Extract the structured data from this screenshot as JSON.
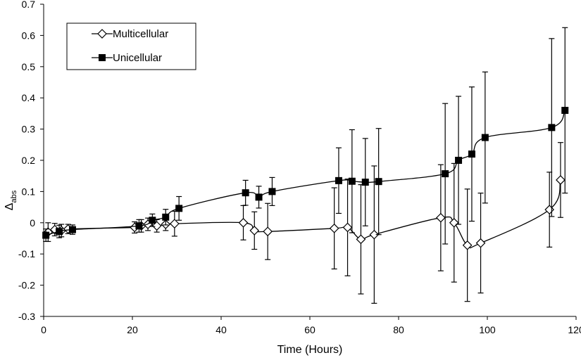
{
  "chart_data": {
    "type": "scatter",
    "title": "",
    "xlabel": "Time (Hours)",
    "ylabel": {
      "main": "Δ",
      "sub": "abs"
    },
    "xlim": [
      0,
      120
    ],
    "ylim": [
      -0.3,
      0.7
    ],
    "xticks": [
      "0",
      "20",
      "40",
      "60",
      "80",
      "100",
      "120"
    ],
    "yticks": [
      "-0.3",
      "-0.2",
      "-0.1",
      "0",
      "0.1",
      "0.2",
      "0.3",
      "0.4",
      "0.5",
      "0.6",
      "0.7"
    ],
    "grid": false,
    "legend_position": "top-left",
    "series": [
      {
        "name": "Multicellular",
        "marker": "open-diamond",
        "color": "#000000",
        "x": [
          1,
          2.5,
          4,
          5.5,
          20.5,
          22,
          23.5,
          25.5,
          27.5,
          29.5,
          45,
          47.5,
          50.5,
          65.5,
          68.5,
          71.5,
          74.5,
          89.5,
          92.5,
          95.5,
          98.5,
          114,
          116.5
        ],
        "y": [
          -0.03,
          -0.022,
          -0.025,
          -0.02,
          -0.015,
          -0.01,
          -0.005,
          -0.01,
          -0.005,
          -0.003,
          0,
          -0.025,
          -0.028,
          -0.018,
          -0.015,
          -0.053,
          -0.038,
          0.016,
          0.0,
          -0.072,
          -0.065,
          0.042,
          0.137
        ],
        "err": [
          0.03,
          0.02,
          0.02,
          0.015,
          0.018,
          0.02,
          0.02,
          0.02,
          0.02,
          0.04,
          0.055,
          0.06,
          0.09,
          0.13,
          0.155,
          0.175,
          0.22,
          0.17,
          0.19,
          0.18,
          0.16,
          0.12,
          0.12
        ]
      },
      {
        "name": "Unicellular",
        "marker": "filled-square",
        "color": "#000000",
        "x": [
          0.5,
          3.5,
          6.5,
          21.5,
          24.5,
          27.5,
          30.5,
          45.5,
          48.5,
          51.5,
          66.5,
          69.5,
          72.5,
          75.5,
          90.5,
          93.5,
          96.5,
          99.5,
          114.5,
          117.5
        ],
        "y": [
          -0.04,
          -0.028,
          -0.022,
          -0.01,
          0.008,
          0.018,
          0.046,
          0.096,
          0.082,
          0.1,
          0.135,
          0.133,
          0.13,
          0.132,
          0.157,
          0.2,
          0.22,
          0.273,
          0.305,
          0.36
        ],
        "err": [
          0.02,
          0.02,
          0.015,
          0.02,
          0.02,
          0.025,
          0.038,
          0.04,
          0.035,
          0.045,
          0.105,
          0.165,
          0.14,
          0.17,
          0.225,
          0.205,
          0.215,
          0.21,
          0.285,
          0.265
        ]
      }
    ]
  }
}
